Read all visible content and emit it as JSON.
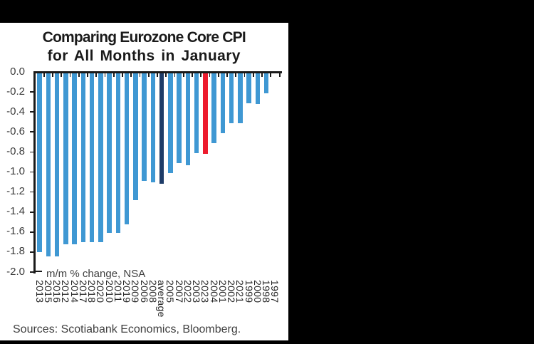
{
  "chart_data": {
    "type": "bar",
    "title_line1": "Comparing Eurozone Core CPI",
    "title_line2": "for All Months in January",
    "unit_note": "m/m % change, NSA",
    "categories": [
      "2013",
      "2015",
      "2016",
      "2012",
      "2014",
      "2017",
      "2018",
      "2020",
      "2010",
      "2011",
      "2019",
      "2009",
      "2006",
      "2008",
      "average",
      "2005",
      "2007",
      "2022",
      "2003",
      "2023",
      "2004",
      "2001",
      "2002",
      "2021",
      "1999",
      "2000",
      "1998",
      "1997"
    ],
    "values": [
      -1.8,
      -1.84,
      -1.84,
      -1.72,
      -1.72,
      -1.7,
      -1.7,
      -1.7,
      -1.61,
      -1.61,
      -1.52,
      -1.28,
      -1.09,
      -1.1,
      -1.12,
      -1.01,
      -0.91,
      -0.93,
      -0.81,
      -0.82,
      -0.71,
      -0.61,
      -0.51,
      -0.51,
      -0.31,
      -0.32,
      -0.21,
      0.0
    ],
    "ylim": [
      -2.0,
      0.0
    ],
    "ytick_step": 0.2,
    "grid": false,
    "legend": false,
    "bar_color": "#3f98d3",
    "average_color": "#1e3c68",
    "highlight_color": "#ed1b2e",
    "average_category": "average",
    "highlight_category": "2023"
  },
  "footer": {
    "sources": "Sources: Scotiabank Economics, Bloomberg."
  }
}
